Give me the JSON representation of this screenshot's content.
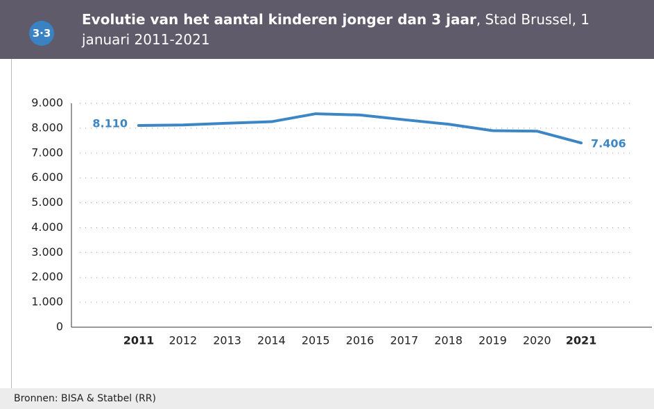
{
  "chart_data": {
    "type": "line",
    "badge": "3·3",
    "title": "Evolutie van het aantal kinderen jonger dan 3 jaar",
    "subtitle": ", Stad Brussel, 1 januari 2011-2021",
    "source": "Bronnen: BISA & Statbel (RR)",
    "categories": [
      "2011",
      "2012",
      "2013",
      "2014",
      "2015",
      "2016",
      "2017",
      "2018",
      "2019",
      "2020",
      "2021"
    ],
    "series": [
      {
        "name": "Aantal kinderen jonger dan 3 jaar",
        "color": "#3d86c6",
        "values": [
          8110,
          8130,
          8200,
          8260,
          8580,
          8530,
          8340,
          8160,
          7900,
          7880,
          7406
        ],
        "value_labels": [
          "8.110",
          null,
          null,
          null,
          null,
          null,
          null,
          null,
          null,
          null,
          "7.406"
        ]
      }
    ],
    "ylim": [
      0,
      9000
    ],
    "yticks": [
      0,
      {
        "value": 1000,
        "label": "1.000"
      },
      {
        "value": 2000,
        "label": "2.000"
      },
      {
        "value": 3000,
        "label": "3.000"
      },
      {
        "value": 4000,
        "label": "4.000"
      },
      {
        "value": 5000,
        "label": "5.000"
      },
      {
        "value": 6000,
        "label": "6.000"
      },
      {
        "value": 7000,
        "label": "7.000"
      },
      {
        "value": 8000,
        "label": "8.000"
      },
      {
        "value": 9000,
        "label": "9.000"
      }
    ],
    "grid": true
  }
}
